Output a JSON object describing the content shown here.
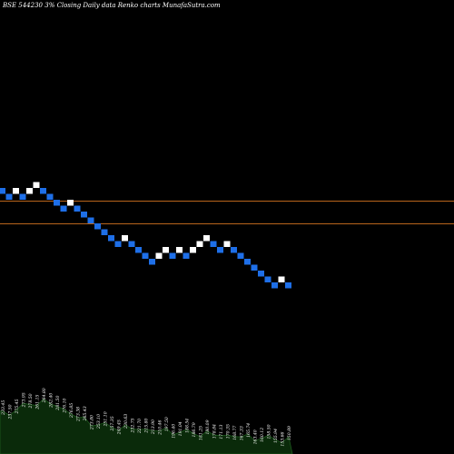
{
  "header": {
    "symbol_text": "BSE 544230",
    "box_text": "3%",
    "description": "Closing Daily data Renko charts MunafaSutra.com"
  },
  "colors": {
    "background": "#000000",
    "up_brick": "#ffffff",
    "down_brick": "#1e6fe8",
    "level_line": "#b8641c",
    "volume_fill": "#0a2a0a",
    "volume_stroke": "#1e5a1e"
  },
  "chart_data": {
    "type": "renko",
    "title": "",
    "bricks": [
      "down",
      "down",
      "up",
      "down",
      "up",
      "up",
      "down",
      "down",
      "down",
      "down",
      "up",
      "down",
      "down",
      "down",
      "down",
      "down",
      "down",
      "down",
      "up",
      "down",
      "down",
      "down",
      "down",
      "up",
      "up",
      "down",
      "up",
      "down",
      "up",
      "up",
      "up",
      "down",
      "down",
      "up",
      "down",
      "down",
      "down",
      "down",
      "down",
      "down",
      "down",
      "up",
      "down"
    ],
    "horizontal_levels": [
      "upper",
      "lower"
    ],
    "volume_labels": [
      "233.45",
      "237.50",
      "275.45",
      "273.95",
      "278.50",
      "261.15",
      "264.80",
      "282.40",
      "281.50",
      "276.10",
      "276.85",
      "273.38",
      "265.43",
      "273.80",
      "253.10",
      "251.10",
      "257.35",
      "249.45",
      "230.63",
      "232.75",
      "221.70",
      "215.80",
      "213.90",
      "210.46",
      "197.50",
      "196.40",
      "191.04",
      "188.54",
      "186.79",
      "181.25",
      "180.09",
      "178.84",
      "171.13",
      "170.35",
      "168.77",
      "167.33",
      "165.74",
      "163.40",
      "160.12",
      "158.50",
      "155.94",
      "153.66",
      "150.89"
    ]
  }
}
